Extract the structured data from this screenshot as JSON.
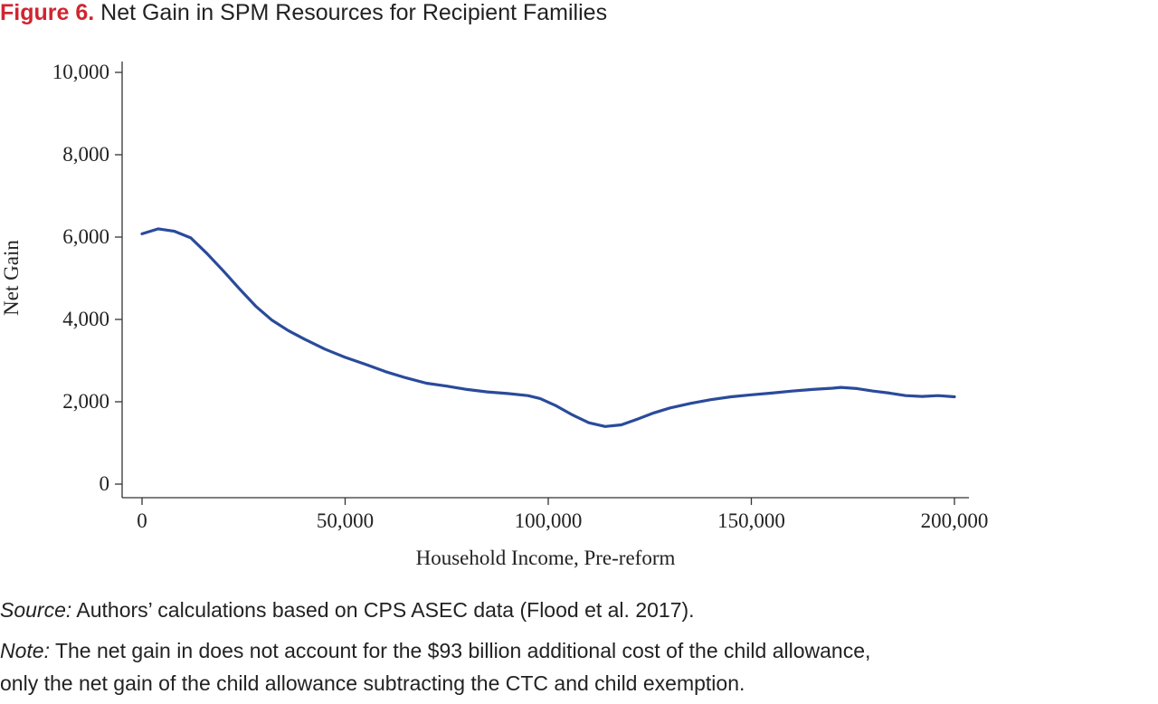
{
  "title": {
    "figure_label": "Figure 6.",
    "text": "Net Gain in SPM Resources for Recipient Families"
  },
  "chart_data": {
    "type": "line",
    "xlabel": "Household Income, Pre-reform",
    "ylabel": "Net Gain",
    "xlim": [
      0,
      200000
    ],
    "ylim": [
      0,
      10000
    ],
    "xticks": [
      0,
      50000,
      100000,
      150000,
      200000
    ],
    "xtick_labels": [
      "0",
      "50,000",
      "100,000",
      "150,000",
      "200,000"
    ],
    "yticks": [
      0,
      2000,
      4000,
      6000,
      8000,
      10000
    ],
    "ytick_labels": [
      "0",
      "2,000",
      "4,000",
      "6,000",
      "8,000",
      "10,000"
    ],
    "grid": false,
    "line_color": "#2a4b9b",
    "series": [
      {
        "x": [
          0,
          4000,
          8000,
          12000,
          16000,
          20000,
          24000,
          28000,
          32000,
          36000,
          40000,
          45000,
          50000,
          55000,
          60000,
          65000,
          70000,
          75000,
          80000,
          85000,
          90000,
          95000,
          98000,
          102000,
          106000,
          110000,
          114000,
          118000,
          122000,
          126000,
          130000,
          135000,
          140000,
          145000,
          150000,
          155000,
          160000,
          165000,
          170000,
          172000,
          176000,
          180000,
          184000,
          188000,
          192000,
          196000,
          200000
        ],
        "y": [
          6080,
          6200,
          6140,
          5980,
          5600,
          5180,
          4740,
          4320,
          3980,
          3730,
          3520,
          3280,
          3080,
          2910,
          2730,
          2580,
          2450,
          2380,
          2300,
          2240,
          2200,
          2150,
          2080,
          1900,
          1680,
          1490,
          1400,
          1440,
          1580,
          1730,
          1850,
          1960,
          2050,
          2120,
          2170,
          2210,
          2260,
          2300,
          2330,
          2350,
          2320,
          2260,
          2210,
          2150,
          2130,
          2150,
          2120
        ]
      }
    ]
  },
  "footer": {
    "source_label": "Source:",
    "source_text": " Authors’ calculations based on CPS ASEC data (Flood et al. 2017).",
    "note_label": "Note:",
    "note_text": " The net gain in does not account for the $93 billion additional cost of the child allowance,",
    "note_text_2": "only the net gain of the child allowance subtracting the CTC and child exemption."
  }
}
